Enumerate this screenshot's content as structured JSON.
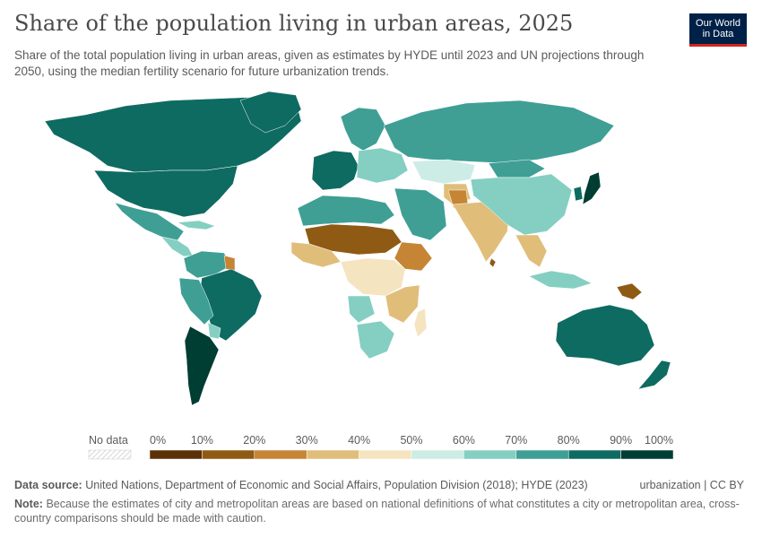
{
  "title": "Share of the population living in urban areas, 2025",
  "subtitle": "Share of the total population living in urban areas, given as estimates by HYDE until 2023 and UN projections through 2050, using the median fertility scenario for future urbanization trends.",
  "logo": {
    "line1": "Our World",
    "line2": "in Data",
    "bg": "#002147",
    "accent": "#ce261e"
  },
  "legend": {
    "no_data_label": "No data",
    "ticks": [
      "0%",
      "10%",
      "20%",
      "30%",
      "40%",
      "50%",
      "60%",
      "70%",
      "80%",
      "90%",
      "100%"
    ],
    "colors": [
      "#5b3006",
      "#8f5a13",
      "#c58535",
      "#e0be7a",
      "#f5e4c0",
      "#cdece6",
      "#84cfc2",
      "#3f9f95",
      "#0e6b61",
      "#003d33"
    ]
  },
  "footer": {
    "source_label": "Data source:",
    "source_text": "United Nations, Department of Economic and Social Affairs, Population Division (2018); HYDE (2023)",
    "license": "urbanization | CC BY",
    "note_label": "Note:",
    "note_text": "Because the estimates of city and metropolitan areas are based on national definitions of what constitutes a city or metropolitan area, cross-country comparisons should be made with caution."
  }
}
